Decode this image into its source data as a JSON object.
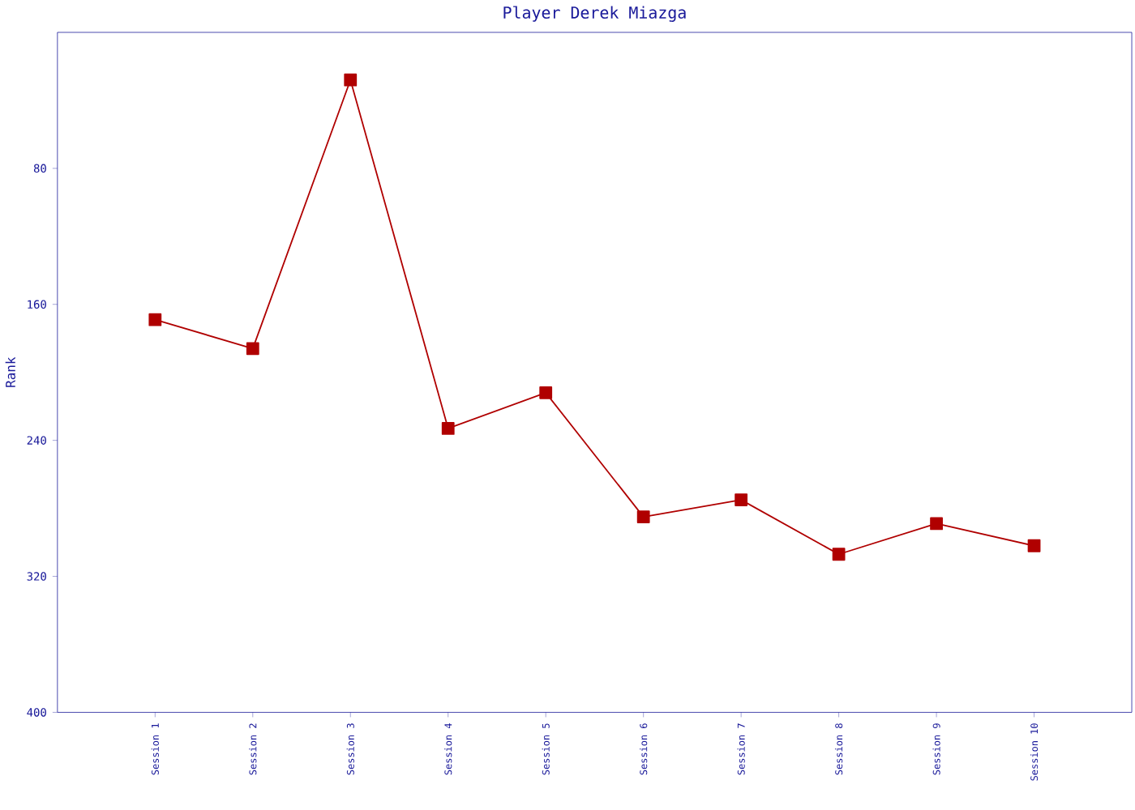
{
  "chart_data": {
    "type": "line",
    "title": "Player Derek Miazga",
    "ylabel": "Rank",
    "categories": [
      "Session 1",
      "Session 2",
      "Session 3",
      "Session 4",
      "Session 5",
      "Session 6",
      "Session 7",
      "Session 8",
      "Session 9",
      "Session 10"
    ],
    "series": [
      {
        "color": "#b00000",
        "values": [
          169,
          186,
          28,
          233,
          212,
          285,
          275,
          307,
          289,
          302
        ]
      }
    ],
    "ylim": [
      400,
      0
    ],
    "yticks": [
      80,
      160,
      240,
      320,
      400
    ],
    "marker": "square",
    "line_style": "solid",
    "grid": false
  }
}
